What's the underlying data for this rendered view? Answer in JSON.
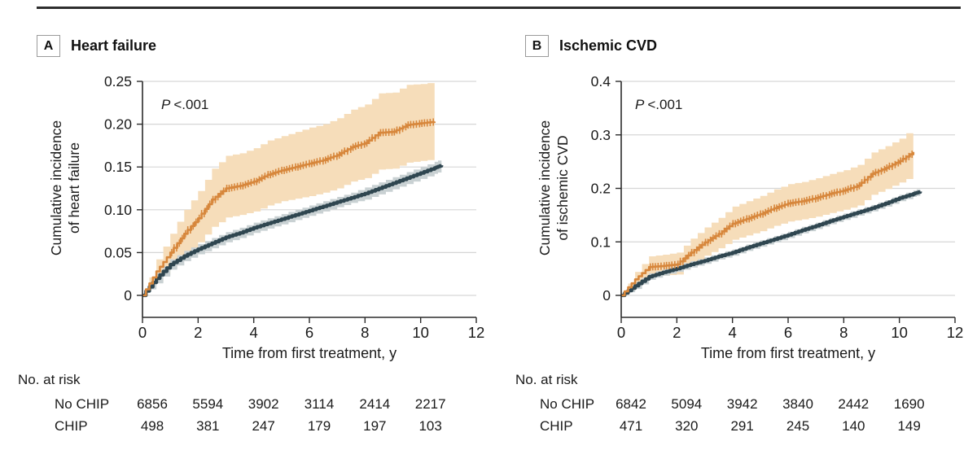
{
  "colors": {
    "chip_line": "#D7873C",
    "chip_band": "#F6DDBA",
    "no_chip_line": "#2F4650",
    "no_chip_band": "#C9D1D3",
    "grid": "#d6d6d6",
    "axis": "#2b2b2b",
    "top_rule": "#2d2d2d"
  },
  "chart_data": [
    {
      "type": "line",
      "panel_label": "A",
      "title": "Heart failure",
      "p_label": "P",
      "p_value": "<.001",
      "xlabel": "Time from first treatment, y",
      "ylabel_line1": "Cumulative incidence",
      "ylabel_line2": "of heart failure",
      "xlim": [
        0,
        12
      ],
      "xticks": [
        0,
        2,
        4,
        6,
        8,
        10,
        12
      ],
      "xtick_labels": [
        "0",
        "2",
        "4",
        "6",
        "8",
        "10",
        "12"
      ],
      "ylim": [
        0,
        0.25
      ],
      "yticks": [
        0,
        0.05,
        0.1,
        0.15,
        0.2,
        0.25
      ],
      "ytick_labels": [
        "0",
        "0.05",
        "0.10",
        "0.15",
        "0.20",
        "0.25"
      ],
      "grid": "horizontal",
      "legend": "none",
      "series": [
        {
          "name": "CHIP",
          "color": "#D7873C",
          "band_color": "#F6DDBA",
          "line_width": 2.6,
          "censor_marks": true,
          "x": [
            0,
            0.5,
            1,
            1.5,
            2,
            2.5,
            3,
            3.5,
            4,
            4.5,
            5,
            5.5,
            6,
            6.5,
            7,
            7.5,
            8,
            8.5,
            9,
            9.5,
            10,
            10.5
          ],
          "y": [
            0,
            0.028,
            0.05,
            0.072,
            0.09,
            0.112,
            0.125,
            0.128,
            0.133,
            0.141,
            0.146,
            0.15,
            0.154,
            0.158,
            0.164,
            0.173,
            0.178,
            0.19,
            0.191,
            0.199,
            0.201,
            0.203
          ],
          "upper": [
            0,
            0.042,
            0.072,
            0.1,
            0.122,
            0.148,
            0.163,
            0.166,
            0.172,
            0.181,
            0.186,
            0.191,
            0.196,
            0.2,
            0.207,
            0.217,
            0.223,
            0.236,
            0.237,
            0.246,
            0.247,
            0.249
          ],
          "lower": [
            0,
            0.016,
            0.032,
            0.048,
            0.062,
            0.08,
            0.091,
            0.094,
            0.098,
            0.105,
            0.11,
            0.113,
            0.116,
            0.12,
            0.125,
            0.133,
            0.137,
            0.147,
            0.148,
            0.155,
            0.157,
            0.159
          ]
        },
        {
          "name": "No CHIP",
          "color": "#2F4650",
          "band_color": "#C9D1D3",
          "line_width": 4.2,
          "censor_marks": false,
          "x": [
            0,
            0.5,
            1,
            1.5,
            2,
            2.5,
            3,
            3.5,
            4,
            4.5,
            5,
            5.5,
            6,
            6.5,
            7,
            7.5,
            8,
            8.5,
            9,
            9.5,
            10,
            10.5,
            10.75
          ],
          "y": [
            0,
            0.02,
            0.036,
            0.046,
            0.054,
            0.061,
            0.068,
            0.073,
            0.079,
            0.084,
            0.089,
            0.094,
            0.099,
            0.104,
            0.109,
            0.114,
            0.119,
            0.125,
            0.131,
            0.137,
            0.143,
            0.149,
            0.152
          ],
          "upper": [
            0,
            0.026,
            0.042,
            0.052,
            0.06,
            0.067,
            0.074,
            0.079,
            0.085,
            0.09,
            0.095,
            0.1,
            0.105,
            0.11,
            0.115,
            0.12,
            0.126,
            0.132,
            0.138,
            0.144,
            0.15,
            0.156,
            0.159
          ],
          "lower": [
            0,
            0.014,
            0.03,
            0.04,
            0.048,
            0.055,
            0.062,
            0.067,
            0.073,
            0.078,
            0.083,
            0.088,
            0.093,
            0.098,
            0.103,
            0.108,
            0.112,
            0.118,
            0.124,
            0.13,
            0.136,
            0.142,
            0.145
          ]
        }
      ],
      "risk_table": {
        "title": "No. at risk",
        "time_points": [
          0,
          2,
          4,
          6,
          8,
          10
        ],
        "rows": [
          {
            "name": "No CHIP",
            "values": [
              "6856",
              "5594",
              "3902",
              "3114",
              "2414",
              "2217"
            ]
          },
          {
            "name": "CHIP",
            "values": [
              "498",
              "381",
              "247",
              "179",
              "197",
              "103"
            ]
          }
        ]
      }
    },
    {
      "type": "line",
      "panel_label": "B",
      "title": "Ischemic CVD",
      "p_label": "P",
      "p_value": "<.001",
      "xlabel": "Time from first treatment, y",
      "ylabel_line1": "Cumulative incidence",
      "ylabel_line2": "of ischemic CVD",
      "xlim": [
        0,
        12
      ],
      "xticks": [
        0,
        2,
        4,
        6,
        8,
        10,
        12
      ],
      "xtick_labels": [
        "0",
        "2",
        "4",
        "6",
        "8",
        "10",
        "12"
      ],
      "ylim": [
        0,
        0.4
      ],
      "yticks": [
        0,
        0.1,
        0.2,
        0.3,
        0.4
      ],
      "ytick_labels": [
        "0",
        "0.1",
        "0.2",
        "0.3",
        "0.4"
      ],
      "grid": "horizontal",
      "legend": "none",
      "series": [
        {
          "name": "CHIP",
          "color": "#D7873C",
          "band_color": "#F6DDBA",
          "line_width": 2.6,
          "censor_marks": true,
          "x": [
            0,
            0.5,
            1,
            1.5,
            2,
            2.5,
            3,
            3.5,
            4,
            4.5,
            5,
            5.5,
            6,
            6.5,
            7,
            7.5,
            8,
            8.5,
            9,
            9.5,
            10,
            10.5
          ],
          "y": [
            0,
            0.03,
            0.053,
            0.055,
            0.058,
            0.08,
            0.099,
            0.115,
            0.134,
            0.143,
            0.152,
            0.163,
            0.172,
            0.176,
            0.182,
            0.19,
            0.196,
            0.205,
            0.227,
            0.238,
            0.251,
            0.268
          ],
          "upper": [
            0,
            0.044,
            0.073,
            0.076,
            0.08,
            0.106,
            0.127,
            0.145,
            0.166,
            0.176,
            0.186,
            0.198,
            0.208,
            0.212,
            0.219,
            0.227,
            0.234,
            0.244,
            0.267,
            0.279,
            0.293,
            0.313
          ],
          "lower": [
            0,
            0.018,
            0.036,
            0.037,
            0.039,
            0.057,
            0.074,
            0.088,
            0.104,
            0.112,
            0.12,
            0.13,
            0.138,
            0.142,
            0.147,
            0.154,
            0.16,
            0.168,
            0.188,
            0.199,
            0.211,
            0.224
          ]
        },
        {
          "name": "No CHIP",
          "color": "#2F4650",
          "band_color": "#C9D1D3",
          "line_width": 4.2,
          "censor_marks": false,
          "x": [
            0,
            0.5,
            1,
            1.5,
            2,
            2.5,
            3,
            3.5,
            4,
            4.5,
            5,
            5.5,
            6,
            6.5,
            7,
            7.5,
            8,
            8.5,
            9,
            9.5,
            10,
            10.5,
            10.75
          ],
          "y": [
            0,
            0.018,
            0.035,
            0.043,
            0.05,
            0.058,
            0.065,
            0.073,
            0.08,
            0.089,
            0.097,
            0.105,
            0.113,
            0.122,
            0.13,
            0.139,
            0.147,
            0.155,
            0.163,
            0.172,
            0.182,
            0.19,
            0.194
          ],
          "upper": [
            0,
            0.024,
            0.041,
            0.049,
            0.056,
            0.064,
            0.071,
            0.079,
            0.086,
            0.095,
            0.103,
            0.111,
            0.119,
            0.128,
            0.136,
            0.145,
            0.153,
            0.161,
            0.169,
            0.178,
            0.188,
            0.196,
            0.2
          ],
          "lower": [
            0,
            0.012,
            0.029,
            0.037,
            0.044,
            0.052,
            0.059,
            0.067,
            0.074,
            0.083,
            0.091,
            0.099,
            0.107,
            0.116,
            0.124,
            0.133,
            0.141,
            0.149,
            0.157,
            0.166,
            0.176,
            0.184,
            0.188
          ]
        }
      ],
      "risk_table": {
        "title": "No. at risk",
        "time_points": [
          0,
          2,
          4,
          6,
          8,
          10
        ],
        "rows": [
          {
            "name": "No CHIP",
            "values": [
              "6842",
              "5094",
              "3942",
              "3840",
              "2442",
              "1690"
            ]
          },
          {
            "name": "CHIP",
            "values": [
              "471",
              "320",
              "291",
              "245",
              "140",
              "149"
            ]
          }
        ]
      }
    }
  ]
}
